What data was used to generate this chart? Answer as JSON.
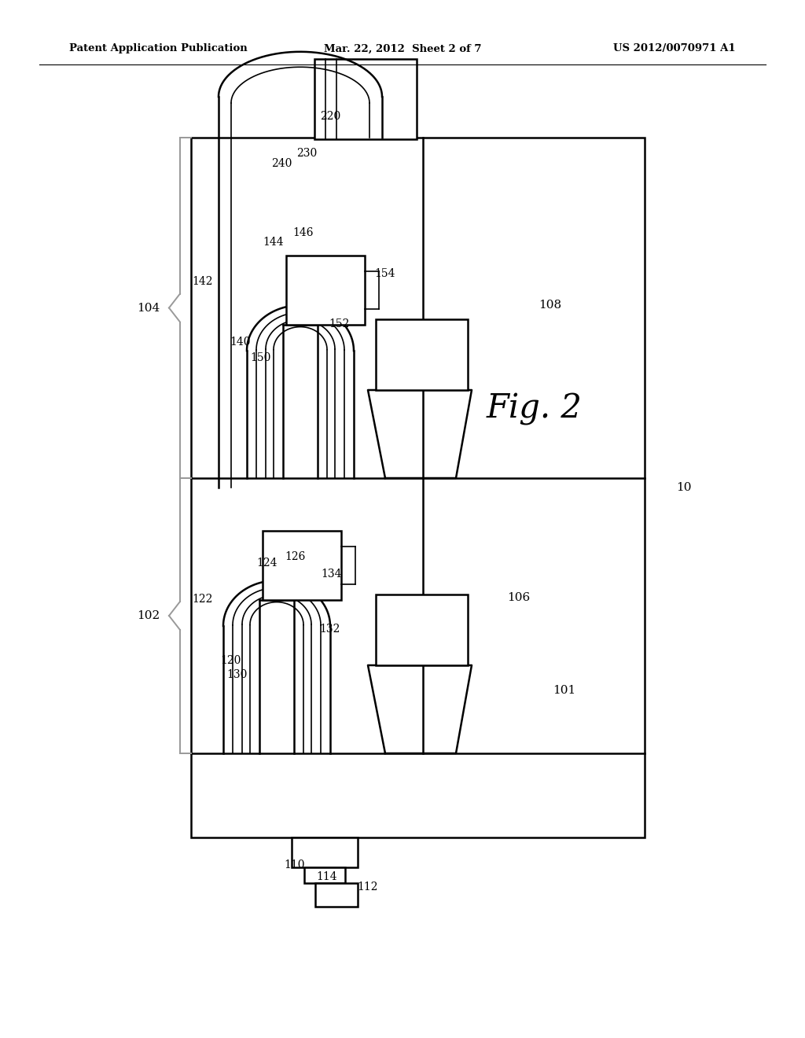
{
  "bg_color": "#ffffff",
  "lc": "#000000",
  "gray": "#aaaaaa",
  "header_left": "Patent Application Publication",
  "header_center": "Mar. 22, 2012  Sheet 2 of 7",
  "header_right": "US 2012/0070971 A1"
}
